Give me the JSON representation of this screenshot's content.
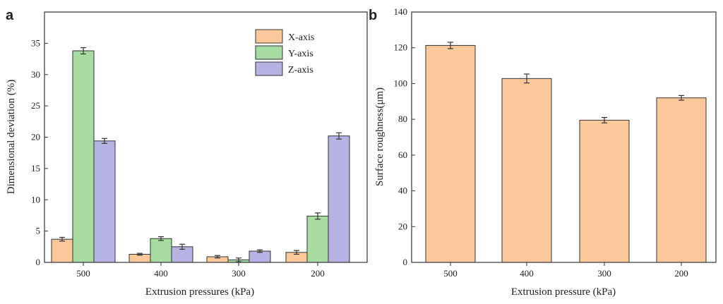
{
  "colors": {
    "x_axis_fill": "#fbc89a",
    "y_axis_fill": "#a6dba2",
    "z_axis_fill": "#b6b2e2",
    "bar_b_fill": "#fbc89a",
    "stroke": "#333333"
  },
  "chart_data": [
    {
      "panel": "a",
      "type": "bar",
      "title": "",
      "xlabel": "Extrusion pressures (kPa)",
      "ylabel": "Dimensional deviation (%)",
      "ylim": [
        0,
        40
      ],
      "yticks": [
        0,
        5,
        10,
        15,
        20,
        25,
        30,
        35
      ],
      "categories": [
        "500",
        "400",
        "300",
        "200"
      ],
      "legend_position": "top-right",
      "series": [
        {
          "name": "X-axis",
          "values": [
            3.7,
            1.3,
            0.9,
            1.6
          ],
          "errors": [
            0.3,
            0.15,
            0.2,
            0.3
          ]
        },
        {
          "name": "Y-axis",
          "values": [
            33.8,
            3.8,
            0.4,
            7.4
          ],
          "errors": [
            0.5,
            0.3,
            0.3,
            0.5
          ]
        },
        {
          "name": "Z-axis",
          "values": [
            19.4,
            2.5,
            1.8,
            20.2
          ],
          "errors": [
            0.4,
            0.4,
            0.2,
            0.5
          ]
        }
      ]
    },
    {
      "panel": "b",
      "type": "bar",
      "title": "",
      "xlabel": "Extrusion pressure (kPa)",
      "ylabel": "Surface roughness(μm)",
      "ylim": [
        0,
        140
      ],
      "yticks": [
        0,
        20,
        40,
        60,
        80,
        100,
        120,
        140
      ],
      "categories": [
        "500",
        "400",
        "300",
        "200"
      ],
      "values": [
        121.3,
        102.8,
        79.5,
        92.0
      ],
      "errors": [
        1.8,
        2.5,
        1.5,
        1.3
      ]
    }
  ]
}
